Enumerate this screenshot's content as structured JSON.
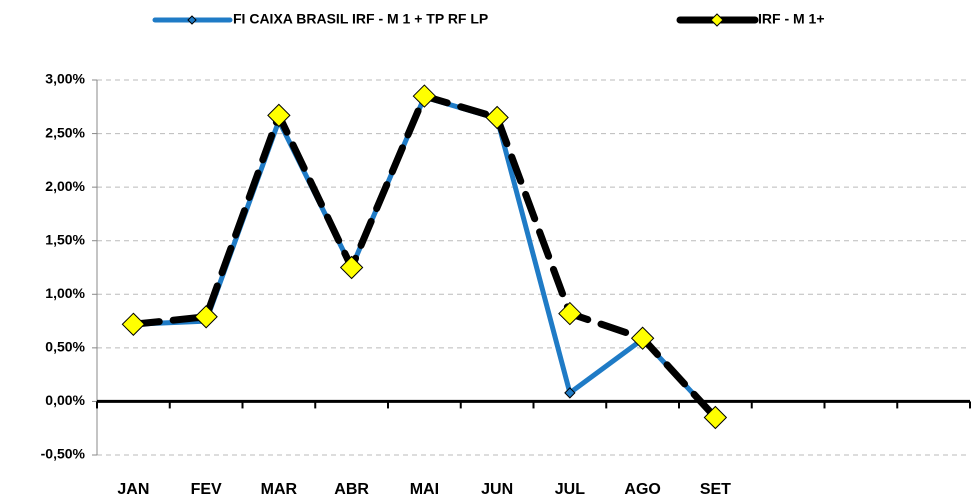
{
  "chart_data": {
    "type": "line",
    "categories": [
      "JAN",
      "FEV",
      "MAR",
      "ABR",
      "MAI",
      "JUN",
      "JUL",
      "AGO",
      "SET",
      null,
      null,
      null
    ],
    "series": [
      {
        "name": "FI CAIXA BRASIL IRF - M 1 + TP RF LP",
        "color": "#1f7bc6",
        "values": [
          0.72,
          0.75,
          2.62,
          1.25,
          2.84,
          2.64,
          0.08,
          0.58,
          -0.15,
          null,
          null,
          null
        ]
      },
      {
        "name": "IRF - M 1+",
        "color": "#000000",
        "marker_color": "#ffff00",
        "values": [
          0.72,
          0.79,
          2.67,
          1.25,
          2.85,
          2.65,
          0.82,
          0.59,
          -0.15,
          null,
          null,
          null
        ]
      }
    ],
    "ylim": [
      -0.5,
      3.0
    ],
    "yticks": [
      {
        "value": -0.5,
        "label": "-0,50%"
      },
      {
        "value": 0,
        "label": "0,00%"
      },
      {
        "value": 0.5,
        "label": "0,50%"
      },
      {
        "value": 1.0,
        "label": "1,00%"
      },
      {
        "value": 1.5,
        "label": "1,50%"
      },
      {
        "value": 2.0,
        "label": "2,00%"
      },
      {
        "value": 2.5,
        "label": "2,50%"
      },
      {
        "value": 3.0,
        "label": "3,00%"
      }
    ],
    "grid": true,
    "legend": "top"
  }
}
